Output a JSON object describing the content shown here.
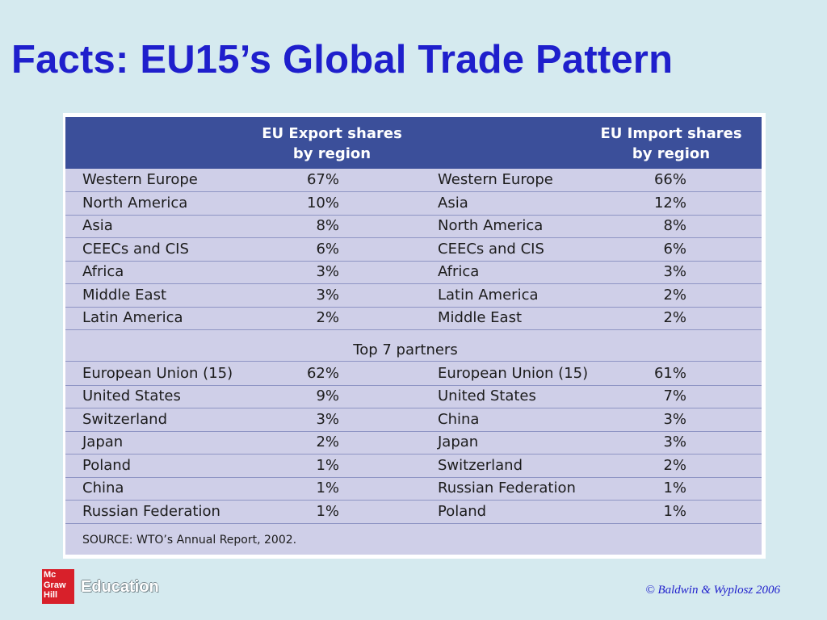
{
  "title": "Facts: EU15’s Global Trade Pattern",
  "table": {
    "header": {
      "export_line1": "EU Export shares",
      "export_line2": "by region",
      "import_line1": "EU Import shares",
      "import_line2": "by region"
    },
    "region_rows": [
      {
        "export_region": "Western Europe",
        "export_share": "67%",
        "import_region": "Western Europe",
        "import_share": "66%"
      },
      {
        "export_region": "North America",
        "export_share": "10%",
        "import_region": "Asia",
        "import_share": "12%"
      },
      {
        "export_region": "Asia",
        "export_share": "8%",
        "import_region": "North America",
        "import_share": "8%"
      },
      {
        "export_region": "CEECs and CIS",
        "export_share": "6%",
        "import_region": "CEECs and CIS",
        "import_share": "6%"
      },
      {
        "export_region": "Africa",
        "export_share": "3%",
        "import_region": "Africa",
        "import_share": "3%"
      },
      {
        "export_region": "Middle East",
        "export_share": "3%",
        "import_region": "Latin America",
        "import_share": "2%"
      },
      {
        "export_region": "Latin America",
        "export_share": "2%",
        "import_region": "Middle East",
        "import_share": "2%"
      }
    ],
    "partners_heading": "Top 7 partners",
    "partner_rows": [
      {
        "export_region": "European Union (15)",
        "export_share": "62%",
        "import_region": "European Union (15)",
        "import_share": "61%"
      },
      {
        "export_region": "United States",
        "export_share": "9%",
        "import_region": "United States",
        "import_share": "7%"
      },
      {
        "export_region": "Switzerland",
        "export_share": "3%",
        "import_region": "China",
        "import_share": "3%"
      },
      {
        "export_region": "Japan",
        "export_share": "2%",
        "import_region": "Japan",
        "import_share": "3%"
      },
      {
        "export_region": "Poland",
        "export_share": "1%",
        "import_region": "Switzerland",
        "import_share": "2%"
      },
      {
        "export_region": "China",
        "export_share": "1%",
        "import_region": "Russian Federation",
        "import_share": "1%"
      },
      {
        "export_region": "Russian Federation",
        "export_share": "1%",
        "import_region": "Poland",
        "import_share": "1%"
      }
    ],
    "source": "SOURCE: WTO’s Annual Report, 2002."
  },
  "footer": {
    "logo_line1": "Mc",
    "logo_line2": "Graw",
    "logo_line3": "Hill",
    "logo_word": "Education",
    "copyright": "© Baldwin & Wyplosz 2006"
  }
}
